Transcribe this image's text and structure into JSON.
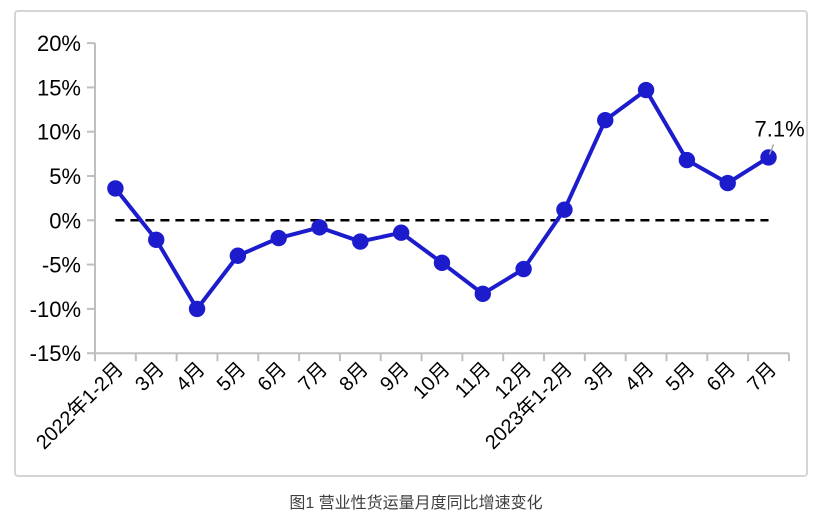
{
  "chart_data": {
    "type": "line",
    "title": "图1 营业性货运量月度同比增速变化",
    "categories": [
      "2022年1-2月",
      "3月",
      "4月",
      "5月",
      "6月",
      "7月",
      "8月",
      "9月",
      "10月",
      "11月",
      "12月",
      "2023年1-2月",
      "3月",
      "4月",
      "5月",
      "6月",
      "7月"
    ],
    "values": [
      3.6,
      -2.2,
      -10.0,
      -4.0,
      -2.0,
      -0.8,
      -2.4,
      -1.4,
      -4.8,
      -8.3,
      -5.5,
      1.2,
      11.3,
      14.7,
      6.8,
      4.2,
      7.1
    ],
    "xlabel": "",
    "ylabel": "",
    "ylim": [
      -15,
      20
    ],
    "ytick_step": 5,
    "ytick_labels": [
      "20%",
      "15%",
      "10%",
      "5%",
      "0%",
      "-5%",
      "-10%",
      "-15%"
    ],
    "grid": false,
    "legend": false,
    "x_labels_rotation_deg": 45,
    "zero_line": {
      "value": 0,
      "style": "dashed",
      "color": "#000000"
    },
    "annotation": {
      "text": "7.1%",
      "index": 16
    },
    "colors": {
      "line": "#1c1ccd",
      "marker": "#1c1ccd",
      "axis": "#bfbfbf",
      "frame_border": "#d5d5d5",
      "label": "#000000",
      "leader": "#a9a9a9"
    }
  }
}
